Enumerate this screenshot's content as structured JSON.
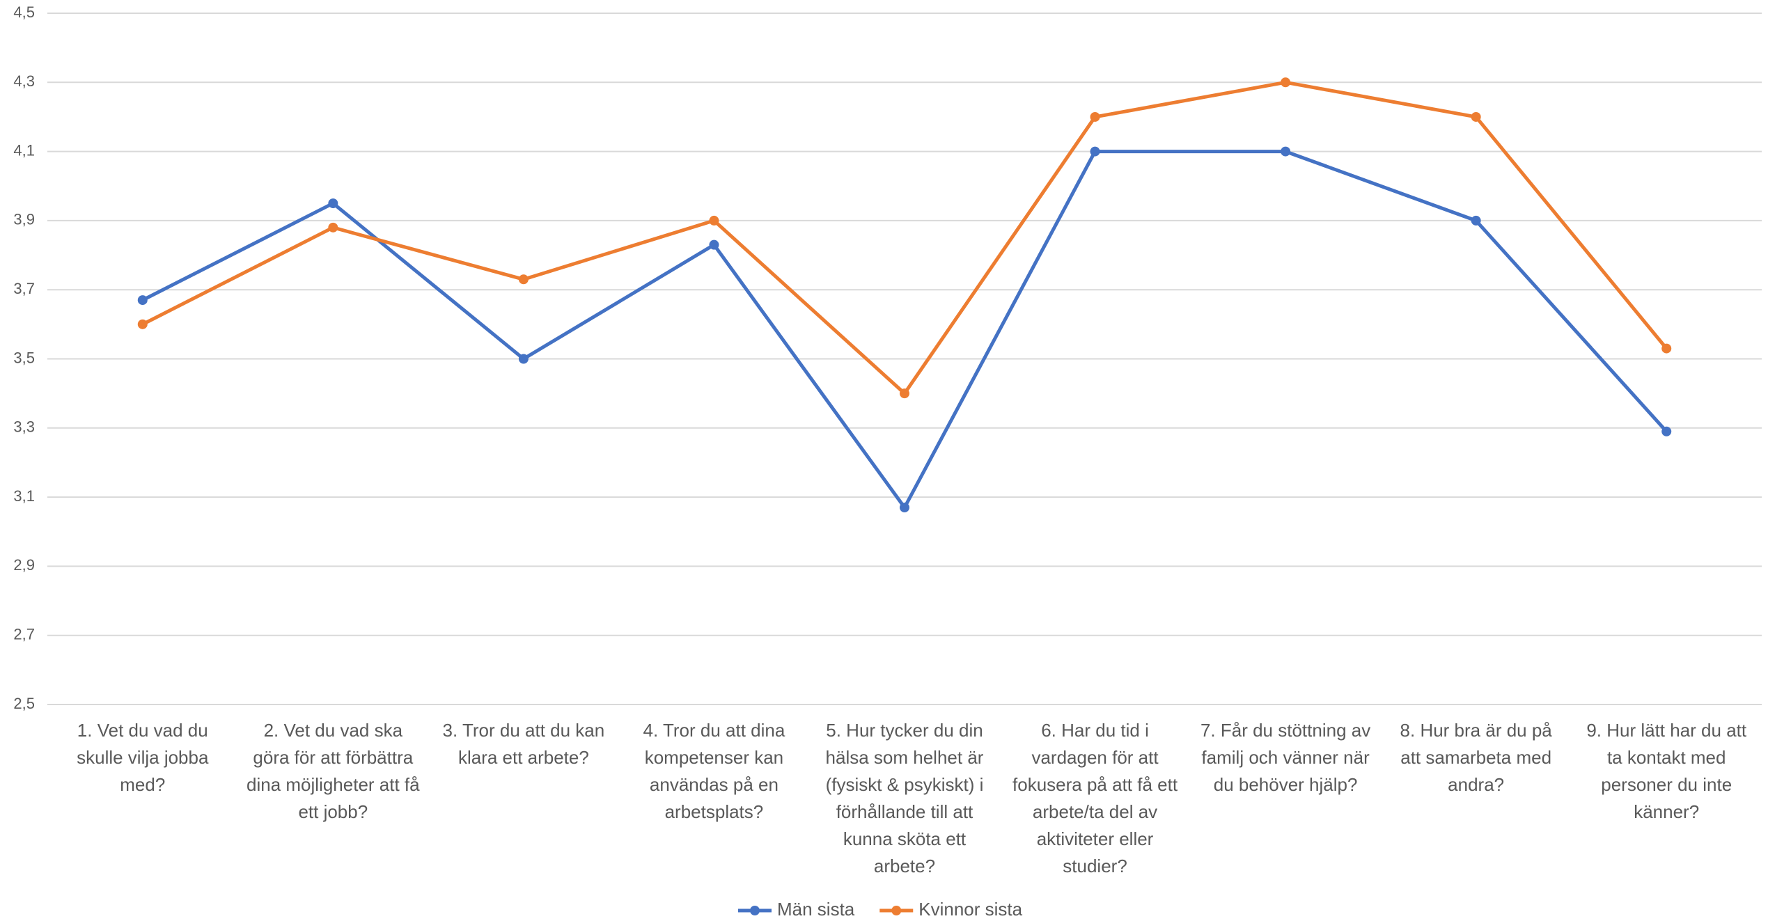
{
  "chart_data": {
    "type": "line",
    "categories": [
      "1. Vet du vad du skulle vilja jobba med?",
      "2. Vet du vad ska göra för att förbättra dina möjligheter att få ett jobb?",
      "3. Tror du att du kan klara ett arbete?",
      "4. Tror du att dina kompetenser kan användas på en arbetsplats?",
      "5. Hur tycker du din hälsa som helhet är (fysiskt & psykiskt) i förhållande till att kunna sköta ett arbete?",
      "6. Har du tid i vardagen för att fokusera på att få ett arbete/ta del av aktiviteter eller studier?",
      "7. Får du stöttning av familj och vänner när du behöver hjälp?",
      "8. Hur bra är du på att samarbeta med andra?",
      "9. Hur lätt har du att ta kontakt med personer du inte känner?"
    ],
    "series": [
      {
        "name": "Män sista",
        "color": "#4472c4",
        "values": [
          3.67,
          3.95,
          3.5,
          3.83,
          3.07,
          4.1,
          4.1,
          3.9,
          3.29
        ]
      },
      {
        "name": "Kvinnor sista",
        "color": "#ed7d31",
        "values": [
          3.6,
          3.88,
          3.73,
          3.9,
          3.4,
          4.2,
          4.3,
          4.2,
          3.53
        ]
      }
    ],
    "ylim": [
      2.5,
      4.5
    ],
    "yticks": [
      {
        "value": 2.5,
        "label": "2,5"
      },
      {
        "value": 2.7,
        "label": "2,7"
      },
      {
        "value": 2.9,
        "label": "2,9"
      },
      {
        "value": 3.1,
        "label": "3,1"
      },
      {
        "value": 3.3,
        "label": "3,3"
      },
      {
        "value": 3.5,
        "label": "3,5"
      },
      {
        "value": 3.7,
        "label": "3,7"
      },
      {
        "value": 3.9,
        "label": "3,9"
      },
      {
        "value": 4.1,
        "label": "4,1"
      },
      {
        "value": 4.3,
        "label": "4,3"
      },
      {
        "value": 4.5,
        "label": "4,5"
      }
    ],
    "grid": true,
    "legend": "bottom"
  }
}
